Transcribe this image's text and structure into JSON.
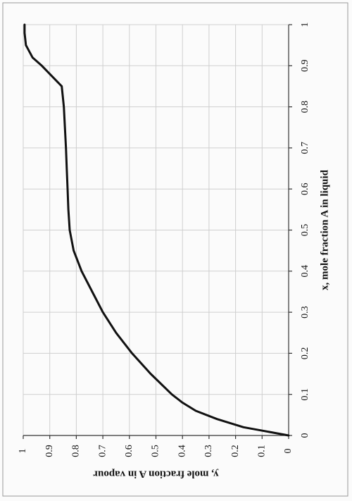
{
  "chart_data": {
    "type": "line",
    "title": "",
    "xlabel": "x, mole fraction A in liquid",
    "ylabel": "y, mole fraction A in vapour",
    "xlim": [
      0,
      1
    ],
    "ylim": [
      0,
      1
    ],
    "x_ticks": [
      "0",
      "0.1",
      "0.2",
      "0.3",
      "0.4",
      "0.5",
      "0.6",
      "0.7",
      "0.8",
      "0.9",
      "1"
    ],
    "y_ticks": [
      "0",
      "0.1",
      "0.2",
      "0.3",
      "0.4",
      "0.5",
      "0.6",
      "0.7",
      "0.8",
      "0.9",
      "1"
    ],
    "grid": true,
    "series": [
      {
        "color": "#111111",
        "x": [
          0.0,
          0.02,
          0.04,
          0.06,
          0.08,
          0.1,
          0.15,
          0.2,
          0.25,
          0.3,
          0.35,
          0.4,
          0.45,
          0.5,
          0.55,
          0.6,
          0.65,
          0.7,
          0.75,
          0.8,
          0.85,
          0.9,
          0.92,
          0.95,
          0.98,
          1.0
        ],
        "y": [
          0.0,
          0.17,
          0.27,
          0.35,
          0.4,
          0.44,
          0.52,
          0.59,
          0.65,
          0.7,
          0.74,
          0.78,
          0.81,
          0.825,
          0.83,
          0.833,
          0.836,
          0.839,
          0.843,
          0.847,
          0.855,
          0.93,
          0.965,
          0.99,
          0.995,
          0.995
        ]
      }
    ]
  }
}
